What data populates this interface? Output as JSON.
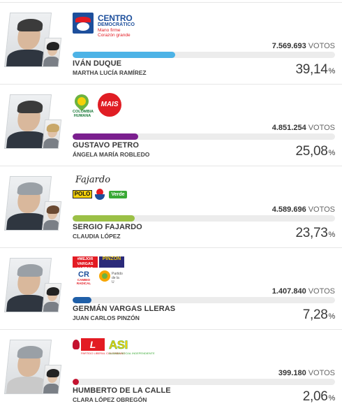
{
  "votes_unit": "VOTOS",
  "percent_symbol": "%",
  "candidates": [
    {
      "name": "IVÁN DUQUE",
      "running_mate": "MARTHA LUCÍA RAMÍREZ",
      "votes": "7.569.693",
      "percent": "39,14",
      "share": 0.3914,
      "bar_color": "#4db3e6",
      "parties": {
        "centro_democratico": {
          "line1": "CENTRO",
          "line2": "DEMOCRÁTICO",
          "line3": "Mano firme",
          "line4": "Corazón grande"
        }
      }
    },
    {
      "name": "GUSTAVO PETRO",
      "running_mate": "ÁNGELA MARÍA ROBLEDO",
      "votes": "4.851.254",
      "percent": "25,08",
      "share": 0.2508,
      "bar_color": "#7b1f8f",
      "parties": {
        "colombia_humana": {
          "line1": "COLOMBIA",
          "line2": "HUMANA"
        },
        "mais": "MAIS"
      }
    },
    {
      "name": "SERGIO FAJARDO",
      "running_mate": "CLAUDIA LÓPEZ",
      "votes": "4.589.696",
      "percent": "23,73",
      "share": 0.2373,
      "bar_color": "#9bc046",
      "parties": {
        "fajardo": "Fajardo",
        "polo": "POLO",
        "verde": "Verde"
      }
    },
    {
      "name": "GERMÁN VARGAS LLERAS",
      "running_mate": "JUAN CARLOS PINZÓN",
      "votes": "1.407.840",
      "percent": "7,28",
      "share": 0.0728,
      "bar_color": "#1f5fa8",
      "parties": {
        "mejor": {
          "line1": "#MEJOR",
          "line2": "VARGAS LLERAS"
        },
        "pinzon": "PINZON",
        "cr": {
          "mark": "CR",
          "sub": "CAMBIO RADICAL"
        },
        "pdu": {
          "line1": "Partido",
          "line2": "de la",
          "line3": "U"
        }
      }
    },
    {
      "name": "HUMBERTO DE LA CALLE",
      "running_mate": "CLARA LÓPEZ OBREGÓN",
      "votes": "399.180",
      "percent": "2,06",
      "share": 0.0206,
      "bar_color": "#c4122f",
      "parties": {
        "liberal": {
          "mark": "L",
          "sub": "PARTIDO LIBERAL COLOMBIANO"
        },
        "asi": {
          "mark": "ASI",
          "sub": "ALIANZA SOCIAL INDEPENDIENTE"
        }
      }
    }
  ]
}
